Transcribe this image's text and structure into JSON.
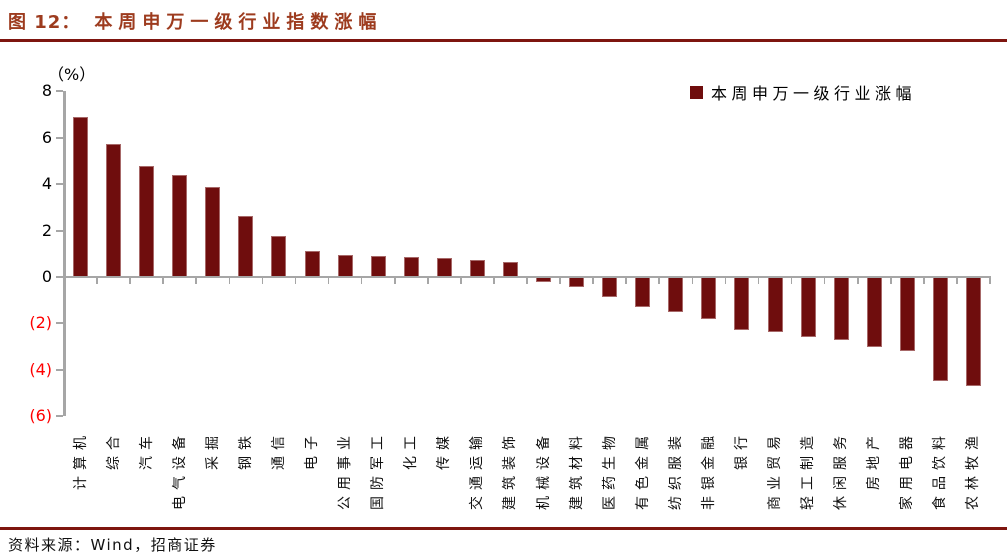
{
  "header": {
    "figure_label": "图 12：",
    "title": "本周申万一级行业指数涨幅"
  },
  "footer": {
    "source": "资料来源：Wind，招商证券"
  },
  "colors": {
    "bar": "#6F0D0D",
    "title": "#9D3B1E",
    "rule": "#7E150F",
    "axis": "#A6A6A6",
    "tick_label_positive": "#000000",
    "tick_label_negative": "#FF0000"
  },
  "chart_data": {
    "type": "bar",
    "title": "本周申万一级行业指数涨幅",
    "unit_label": "（%）",
    "legend": "本周申万一级行业涨幅",
    "legend_position": "top-right",
    "grid": false,
    "ylim": [
      -6,
      8
    ],
    "ytick_step": 2,
    "ytick_values": [
      8,
      6,
      4,
      2,
      0,
      -2,
      -4,
      -6
    ],
    "ytick_labels": [
      "8",
      "6",
      "4",
      "2",
      "0",
      "(2)",
      "(4)",
      "(6)"
    ],
    "negative_labels_style": "red parentheses",
    "categories": [
      "计算机",
      "综合",
      "汽车",
      "电气设备",
      "采掘",
      "钢铁",
      "通信",
      "电子",
      "公用事业",
      "国防军工",
      "化工",
      "传媒",
      "交通运输",
      "建筑装饰",
      "机械设备",
      "建筑材料",
      "医药生物",
      "有色金属",
      "纺织服装",
      "非银金融",
      "银行",
      "商业贸易",
      "轻工制造",
      "休闲服务",
      "房地产",
      "家用电器",
      "食品饮料",
      "农林牧渔"
    ],
    "values": [
      6.9,
      5.75,
      4.8,
      4.4,
      3.9,
      2.65,
      1.75,
      1.1,
      0.95,
      0.9,
      0.85,
      0.8,
      0.75,
      0.65,
      -0.2,
      -0.45,
      -0.85,
      -1.3,
      -1.5,
      -1.8,
      -2.3,
      -2.35,
      -2.6,
      -2.7,
      -3.0,
      -3.2,
      -4.5,
      -4.7
    ]
  }
}
